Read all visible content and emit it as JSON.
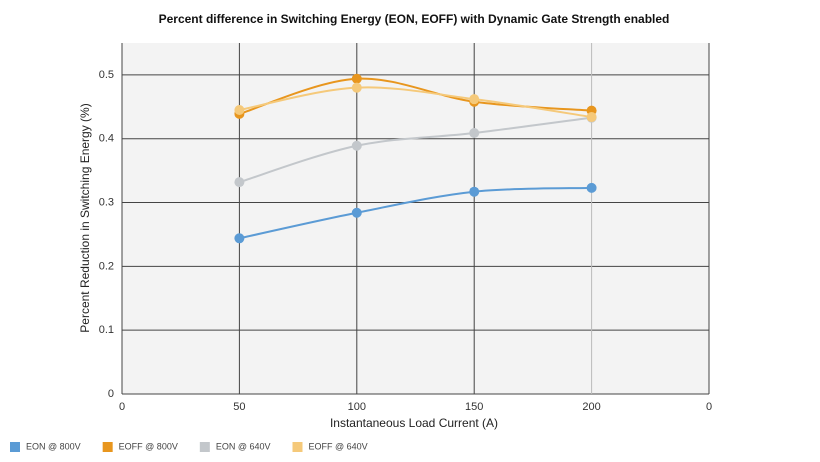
{
  "chart_data": {
    "type": "line",
    "title": "Percent difference in Switching Energy (EON, EOFF) with Dynamic Gate Strength enabled",
    "x_label": "Instantaneous Load Current (A)",
    "y_label": "Percent Reduction in Switching Energy (%)",
    "x": [
      50,
      100,
      150,
      200
    ],
    "series": [
      {
        "name": "EON @ 800V",
        "color": "#5b9bd5",
        "values": [
          0.244,
          0.284,
          0.317,
          0.323
        ]
      },
      {
        "name": "EOFF @ 800V",
        "color": "#e8961e",
        "values": [
          0.439,
          0.494,
          0.458,
          0.444
        ]
      },
      {
        "name": "EON @ 640V",
        "color": "#c3c7cb",
        "values": [
          0.332,
          0.389,
          0.409,
          0.433
        ]
      },
      {
        "name": "EOFF @ 640V",
        "color": "#f5c97a",
        "values": [
          0.445,
          0.48,
          0.462,
          0.434
        ]
      }
    ],
    "xlim": [
      0,
      250
    ],
    "xticks": [
      0,
      50,
      100,
      150,
      200,
      {
        "value": 250,
        "label": "0"
      }
    ],
    "ylim": [
      0,
      0.55
    ],
    "yticks": [
      0,
      0.1,
      0.2,
      0.3,
      0.4,
      0.5
    ],
    "grid": true,
    "legend": "bottom-left"
  }
}
